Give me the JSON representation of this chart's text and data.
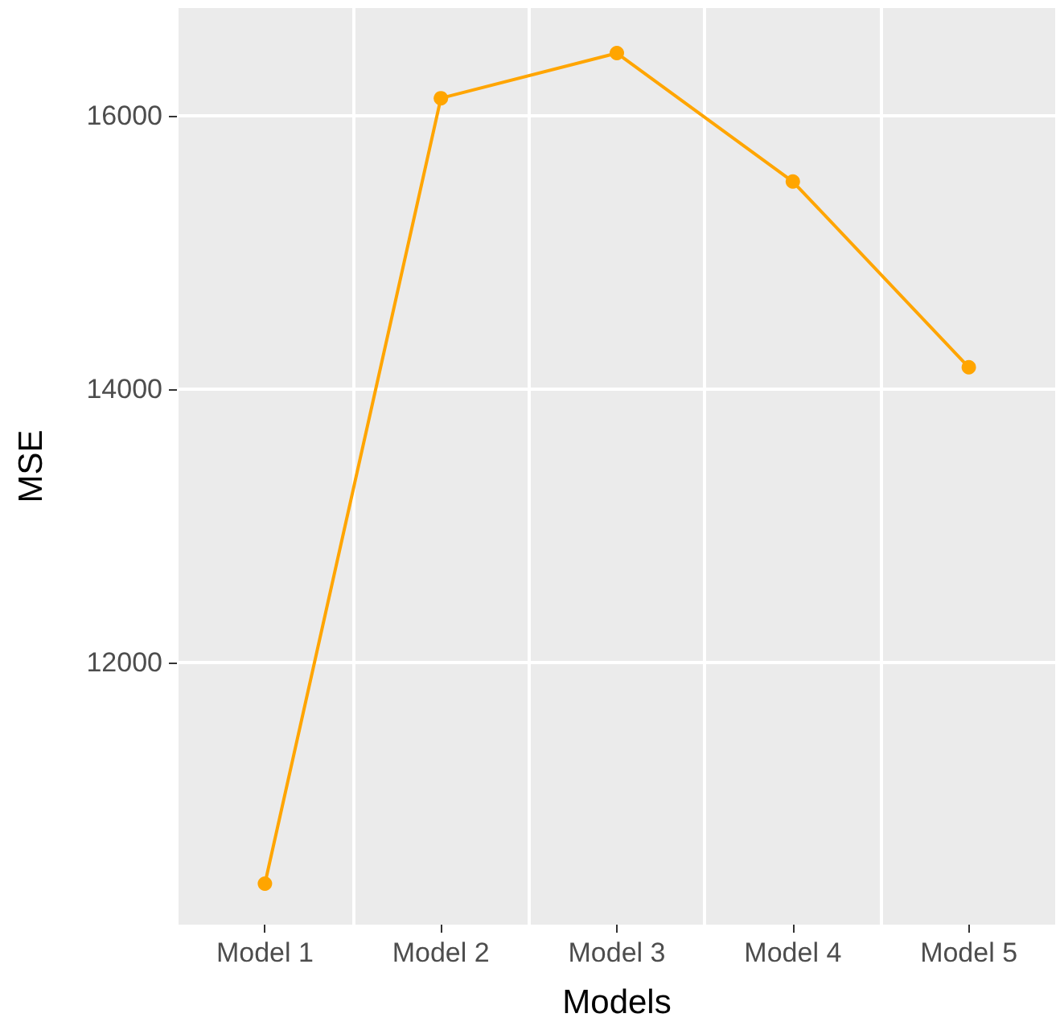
{
  "chart_data": {
    "type": "line",
    "xlabel": "Models",
    "ylabel": "MSE",
    "categories": [
      "Model 1",
      "Model 2",
      "Model 3",
      "Model 4",
      "Model 5"
    ],
    "series": [
      {
        "color": "#ffa500",
        "values": [
          10380,
          16130,
          16460,
          15520,
          14160
        ]
      }
    ],
    "ylim": [
      10080,
      16790
    ],
    "yticks": [
      12000,
      14000,
      16000
    ],
    "grid": true,
    "marker": "circle"
  }
}
